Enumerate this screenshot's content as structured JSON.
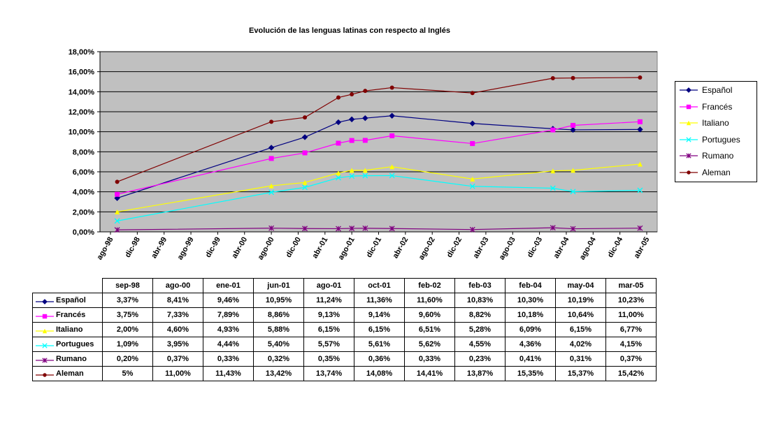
{
  "chart_data": {
    "type": "line",
    "title": "Evolución de las lenguas latinas con respecto al Inglés",
    "xlabel": "",
    "ylabel": "",
    "ylim": [
      0,
      18
    ],
    "y_ticks": [
      "0,00%",
      "2,00%",
      "4,00%",
      "6,00%",
      "8,00%",
      "10,00%",
      "12,00%",
      "14,00%",
      "16,00%",
      "18,00%"
    ],
    "x_ticks": [
      "ago-98",
      "dic-98",
      "abr-99",
      "ago-99",
      "dic-99",
      "abr-00",
      "ago-00",
      "dic-00",
      "abr-01",
      "ago-01",
      "dic-01",
      "abr-02",
      "ago-02",
      "dic-02",
      "abr-03",
      "ago-03",
      "dic-03",
      "abr-04",
      "ago-04",
      "dic-04",
      "abr-05"
    ],
    "grid": true,
    "legend_position": "right",
    "plot_background": "#c0c0c0",
    "categories": [
      "sep-98",
      "ago-00",
      "ene-01",
      "jun-01",
      "ago-01",
      "oct-01",
      "feb-02",
      "feb-03",
      "feb-04",
      "may-04",
      "mar-05"
    ],
    "series": [
      {
        "name": "Español",
        "color": "#000080",
        "marker": "diamond",
        "values": [
          3.37,
          8.41,
          9.46,
          10.95,
          11.24,
          11.36,
          11.6,
          10.83,
          10.3,
          10.19,
          10.23
        ],
        "labels": [
          "3,37%",
          "8,41%",
          "9,46%",
          "10,95%",
          "11,24%",
          "11,36%",
          "11,60%",
          "10,83%",
          "10,30%",
          "10,19%",
          "10,23%"
        ]
      },
      {
        "name": "Francés",
        "color": "#ff00ff",
        "marker": "square",
        "values": [
          3.75,
          7.33,
          7.89,
          8.86,
          9.13,
          9.14,
          9.6,
          8.82,
          10.18,
          10.64,
          11.0
        ],
        "labels": [
          "3,75%",
          "7,33%",
          "7,89%",
          "8,86%",
          "9,13%",
          "9,14%",
          "9,60%",
          "8,82%",
          "10,18%",
          "10,64%",
          "11,00%"
        ]
      },
      {
        "name": "Italiano",
        "color": "#ffff00",
        "marker": "triangle",
        "values": [
          2.0,
          4.6,
          4.93,
          5.88,
          6.15,
          6.15,
          6.51,
          5.28,
          6.09,
          6.15,
          6.77
        ],
        "labels": [
          "2,00%",
          "4,60%",
          "4,93%",
          "5,88%",
          "6,15%",
          "6,15%",
          "6,51%",
          "5,28%",
          "6,09%",
          "6,15%",
          "6,77%"
        ]
      },
      {
        "name": "Portugues",
        "color": "#00ffff",
        "marker": "x",
        "values": [
          1.09,
          3.95,
          4.44,
          5.4,
          5.57,
          5.61,
          5.62,
          4.55,
          4.36,
          4.02,
          4.15
        ],
        "labels": [
          "1,09%",
          "3,95%",
          "4,44%",
          "5,40%",
          "5,57%",
          "5,61%",
          "5,62%",
          "4,55%",
          "4,36%",
          "4,02%",
          "4,15%"
        ]
      },
      {
        "name": "Rumano",
        "color": "#800080",
        "marker": "star",
        "values": [
          0.2,
          0.37,
          0.33,
          0.32,
          0.35,
          0.36,
          0.33,
          0.23,
          0.41,
          0.31,
          0.37
        ],
        "labels": [
          "0,20%",
          "0,37%",
          "0,33%",
          "0,32%",
          "0,35%",
          "0,36%",
          "0,33%",
          "0,23%",
          "0,41%",
          "0,31%",
          "0,37%"
        ]
      },
      {
        "name": "Aleman",
        "color": "#800000",
        "marker": "circle",
        "values": [
          5,
          11.0,
          11.43,
          13.42,
          13.74,
          14.08,
          14.41,
          13.87,
          15.35,
          15.37,
          15.42
        ],
        "labels": [
          "5%",
          "11,00%",
          "11,43%",
          "13,42%",
          "13,74%",
          "14,08%",
          "14,41%",
          "13,87%",
          "15,35%",
          "15,37%",
          "15,42%"
        ]
      }
    ]
  }
}
